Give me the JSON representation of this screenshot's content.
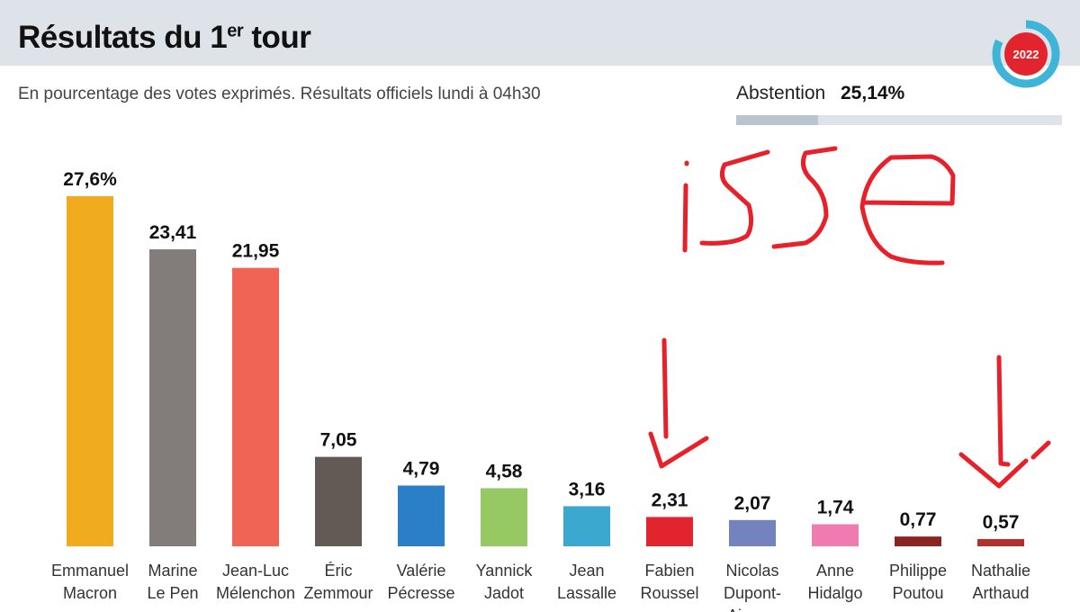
{
  "header": {
    "title": "Résultats du 1",
    "title_sup": "er",
    "title_end": " tour",
    "subtitle": "En pourcentage des votes exprimés. Résultats officiels lundi à 04h30",
    "logo_year": "2022"
  },
  "abstention": {
    "label": "Abstention",
    "value_text": "25,14%",
    "value": 25.14
  },
  "annotation": {
    "handwritten_text": "isse",
    "color": "#e8202a"
  },
  "chart_data": {
    "type": "bar",
    "title": "Résultats du 1er tour",
    "ylabel": "% des votes exprimés",
    "ylim": [
      0,
      27.6
    ],
    "categories": [
      [
        "Emmanuel",
        "Macron"
      ],
      [
        "Marine",
        "Le Pen"
      ],
      [
        "Jean-Luc",
        "Mélenchon"
      ],
      [
        "Éric",
        "Zemmour"
      ],
      [
        "Valérie",
        "Pécresse"
      ],
      [
        "Yannick",
        "Jadot"
      ],
      [
        "Jean",
        "Lassalle"
      ],
      [
        "Fabien",
        "Roussel"
      ],
      [
        "Nicolas",
        "Dupont-",
        "Aignan"
      ],
      [
        "Anne",
        "Hidalgo"
      ],
      [
        "Philippe",
        "Poutou"
      ],
      [
        "Nathalie",
        "Arthaud"
      ]
    ],
    "values": [
      27.6,
      23.41,
      21.95,
      7.05,
      4.79,
      4.58,
      3.16,
      2.31,
      2.07,
      1.74,
      0.77,
      0.57
    ],
    "labels": [
      "27,6%",
      "23,41",
      "21,95",
      "7,05",
      "4,79",
      "4,58",
      "3,16",
      "2,31",
      "2,07",
      "1,74",
      "0,77",
      "0,57"
    ],
    "colors": [
      "#f0ac1e",
      "#827c7b",
      "#f06453",
      "#645a55",
      "#2a7fc6",
      "#96c864",
      "#3aa8cf",
      "#e1242e",
      "#7283bd",
      "#f07bb0",
      "#8a2420",
      "#b3302c"
    ]
  }
}
